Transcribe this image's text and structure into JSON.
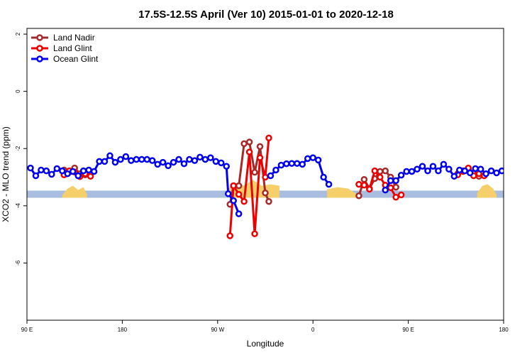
{
  "chart_data": {
    "type": "line",
    "title": "17.5S-12.5S April (Ver 10)   2015-01-01 to 2020-12-18",
    "xlabel": "Longitude",
    "ylabel": "XCO2 - MLO trend (ppm)",
    "xlim": [
      -90,
      180
    ],
    "ylim": [
      -8,
      2.2
    ],
    "x_ticks": [
      {
        "value": -90,
        "label": "90 E"
      },
      {
        "value": -36,
        "label": "180"
      },
      {
        "value": 18,
        "label": "90 W"
      },
      {
        "value": 72,
        "label": "0"
      },
      {
        "value": 126,
        "label": "90 E"
      },
      {
        "value": 180,
        "label": "180"
      }
    ],
    "y_ticks": [
      {
        "value": 2,
        "label": "2"
      },
      {
        "value": 0,
        "label": "0"
      },
      {
        "value": -2,
        "label": "-2"
      },
      {
        "value": -4,
        "label": "-4"
      },
      {
        "value": -6,
        "label": "-6"
      }
    ],
    "land_band": {
      "ymin": -3.72,
      "ymax": -3.47,
      "color": "#a9bde0"
    },
    "land_color": "#f5cf6a",
    "land_segments": [
      [
        {
          "x": -70,
          "y": -3.63
        },
        {
          "x": -67,
          "y": -3.4
        },
        {
          "x": -64,
          "y": -3.3
        },
        {
          "x": -61,
          "y": -3.45
        },
        {
          "x": -58,
          "y": -3.35
        },
        {
          "x": -56,
          "y": -3.6
        }
      ],
      [
        {
          "x": 24,
          "y": -3.4
        },
        {
          "x": 28,
          "y": -3.2
        },
        {
          "x": 33,
          "y": -3.3
        },
        {
          "x": 38,
          "y": -3.1
        },
        {
          "x": 43,
          "y": -3.3
        },
        {
          "x": 48,
          "y": -3.25
        },
        {
          "x": 53,
          "y": -3.3
        }
      ],
      [
        {
          "x": 80,
          "y": -3.42
        },
        {
          "x": 86,
          "y": -3.35
        },
        {
          "x": 92,
          "y": -3.4
        },
        {
          "x": 97,
          "y": -3.6
        }
      ],
      [
        {
          "x": 165,
          "y": -3.55
        },
        {
          "x": 168,
          "y": -3.3
        },
        {
          "x": 171,
          "y": -3.25
        },
        {
          "x": 174,
          "y": -3.4
        },
        {
          "x": 176,
          "y": -3.6
        }
      ]
    ],
    "legend": {
      "position": "top-left"
    },
    "series": [
      {
        "name": "Land Nadir",
        "color": "#a52a2a",
        "points": [
          {
            "x": -69,
            "y": -2.75
          },
          {
            "x": -66,
            "y": -2.82
          },
          {
            "x": -63,
            "y": -2.68
          },
          {
            "x": -60,
            "y": -2.88
          },
          {
            "x": -57,
            "y": -2.92
          },
          {
            "x": -54,
            "y": -2.82
          },
          {
            "x": 25,
            "y": -3.95
          },
          {
            "x": 27,
            "y": -3.3
          },
          {
            "x": 30,
            "y": -3.3
          },
          {
            "x": 33,
            "y": -1.83
          },
          {
            "x": 36,
            "y": -1.77
          },
          {
            "x": 39,
            "y": -2.83
          },
          {
            "x": 42,
            "y": -1.93
          },
          {
            "x": 45,
            "y": -3.55
          },
          {
            "x": 47,
            "y": -3.85
          },
          {
            "x": 98,
            "y": -3.65
          },
          {
            "x": 101,
            "y": -3.08
          },
          {
            "x": 104,
            "y": -3.4
          },
          {
            "x": 107,
            "y": -3.05
          },
          {
            "x": 110,
            "y": -2.8
          },
          {
            "x": 113,
            "y": -2.78
          },
          {
            "x": 116,
            "y": -3.0
          },
          {
            "x": 119,
            "y": -3.35
          },
          {
            "x": 154,
            "y": -2.88
          },
          {
            "x": 157,
            "y": -2.78
          },
          {
            "x": 160,
            "y": -2.72
          },
          {
            "x": 163,
            "y": -2.87
          },
          {
            "x": 166,
            "y": -2.97
          }
        ]
      },
      {
        "name": "Land Glint",
        "color": "#ee0000",
        "points": [
          {
            "x": -69,
            "y": -2.92
          },
          {
            "x": -66,
            "y": -2.78
          },
          {
            "x": -63,
            "y": -2.82
          },
          {
            "x": -60,
            "y": -2.98
          },
          {
            "x": -57,
            "y": -2.88
          },
          {
            "x": -54,
            "y": -2.97
          },
          {
            "x": 25,
            "y": -5.05
          },
          {
            "x": 27,
            "y": -3.3
          },
          {
            "x": 30,
            "y": -3.6
          },
          {
            "x": 33,
            "y": -3.85
          },
          {
            "x": 36,
            "y": -2.12
          },
          {
            "x": 39,
            "y": -4.98
          },
          {
            "x": 42,
            "y": -2.32
          },
          {
            "x": 45,
            "y": -3.0
          },
          {
            "x": 47,
            "y": -1.63
          },
          {
            "x": 98,
            "y": -3.25
          },
          {
            "x": 101,
            "y": -3.28
          },
          {
            "x": 104,
            "y": -3.42
          },
          {
            "x": 107,
            "y": -2.78
          },
          {
            "x": 110,
            "y": -3.0
          },
          {
            "x": 113,
            "y": -3.28
          },
          {
            "x": 116,
            "y": -3.37
          },
          {
            "x": 119,
            "y": -3.7
          },
          {
            "x": 122,
            "y": -3.62
          },
          {
            "x": 154,
            "y": -2.92
          },
          {
            "x": 157,
            "y": -2.8
          },
          {
            "x": 160,
            "y": -2.68
          },
          {
            "x": 163,
            "y": -2.95
          },
          {
            "x": 166,
            "y": -2.88
          },
          {
            "x": 169,
            "y": -2.95
          }
        ]
      },
      {
        "name": "Ocean Glint",
        "color": "#0000ee",
        "points": [
          {
            "x": -88,
            "y": -2.68
          },
          {
            "x": -85,
            "y": -2.95
          },
          {
            "x": -82,
            "y": -2.75
          },
          {
            "x": -79,
            "y": -2.78
          },
          {
            "x": -76,
            "y": -2.9
          },
          {
            "x": -73,
            "y": -2.7
          },
          {
            "x": -70,
            "y": -2.78
          },
          {
            "x": -67,
            "y": -2.88
          },
          {
            "x": -64,
            "y": -2.8
          },
          {
            "x": -61,
            "y": -2.95
          },
          {
            "x": -58,
            "y": -2.78
          },
          {
            "x": -55,
            "y": -2.75
          },
          {
            "x": -52,
            "y": -2.8
          },
          {
            "x": -49,
            "y": -2.45
          },
          {
            "x": -46,
            "y": -2.45
          },
          {
            "x": -43,
            "y": -2.25
          },
          {
            "x": -40,
            "y": -2.48
          },
          {
            "x": -37,
            "y": -2.38
          },
          {
            "x": -34,
            "y": -2.28
          },
          {
            "x": -31,
            "y": -2.42
          },
          {
            "x": -28,
            "y": -2.38
          },
          {
            "x": -25,
            "y": -2.38
          },
          {
            "x": -22,
            "y": -2.38
          },
          {
            "x": -19,
            "y": -2.42
          },
          {
            "x": -16,
            "y": -2.55
          },
          {
            "x": -13,
            "y": -2.48
          },
          {
            "x": -10,
            "y": -2.6
          },
          {
            "x": -7,
            "y": -2.48
          },
          {
            "x": -4,
            "y": -2.38
          },
          {
            "x": -1,
            "y": -2.53
          },
          {
            "x": 2,
            "y": -2.38
          },
          {
            "x": 5,
            "y": -2.42
          },
          {
            "x": 8,
            "y": -2.3
          },
          {
            "x": 11,
            "y": -2.38
          },
          {
            "x": 14,
            "y": -2.32
          },
          {
            "x": 17,
            "y": -2.45
          },
          {
            "x": 20,
            "y": -2.5
          },
          {
            "x": 23,
            "y": -2.62
          },
          {
            "x": 24,
            "y": -3.58
          },
          {
            "x": 27,
            "y": -3.82
          },
          {
            "x": 30,
            "y": -4.28
          },
          {
            "x": 48,
            "y": -2.95
          },
          {
            "x": 51,
            "y": -2.75
          },
          {
            "x": 54,
            "y": -2.58
          },
          {
            "x": 57,
            "y": -2.53
          },
          {
            "x": 60,
            "y": -2.52
          },
          {
            "x": 63,
            "y": -2.52
          },
          {
            "x": 66,
            "y": -2.55
          },
          {
            "x": 69,
            "y": -2.35
          },
          {
            "x": 72,
            "y": -2.32
          },
          {
            "x": 75,
            "y": -2.4
          },
          {
            "x": 78,
            "y": -3.0
          },
          {
            "x": 81,
            "y": -3.25
          },
          {
            "x": 113,
            "y": -3.45
          },
          {
            "x": 116,
            "y": -3.12
          },
          {
            "x": 119,
            "y": -3.12
          },
          {
            "x": 122,
            "y": -2.93
          },
          {
            "x": 125,
            "y": -2.8
          },
          {
            "x": 128,
            "y": -2.8
          },
          {
            "x": 131,
            "y": -2.72
          },
          {
            "x": 134,
            "y": -2.62
          },
          {
            "x": 137,
            "y": -2.78
          },
          {
            "x": 140,
            "y": -2.62
          },
          {
            "x": 143,
            "y": -2.78
          },
          {
            "x": 146,
            "y": -2.55
          },
          {
            "x": 149,
            "y": -2.72
          },
          {
            "x": 152,
            "y": -2.97
          },
          {
            "x": 155,
            "y": -2.75
          },
          {
            "x": 158,
            "y": -2.78
          },
          {
            "x": 161,
            "y": -2.85
          },
          {
            "x": 164,
            "y": -2.7
          },
          {
            "x": 167,
            "y": -2.72
          },
          {
            "x": 170,
            "y": -2.88
          },
          {
            "x": 173,
            "y": -2.78
          },
          {
            "x": 176,
            "y": -2.85
          },
          {
            "x": 179,
            "y": -2.78
          },
          {
            "x": 182,
            "y": -2.85
          },
          {
            "x": 185,
            "y": -2.95
          },
          {
            "x": 188,
            "y": -2.78
          },
          {
            "x": 191,
            "y": -2.85
          },
          {
            "x": 194,
            "y": -2.48
          },
          {
            "x": 197,
            "y": -2.45
          },
          {
            "x": 200,
            "y": -2.25
          },
          {
            "x": 203,
            "y": -2.48
          },
          {
            "x": 206,
            "y": -2.38
          }
        ]
      }
    ]
  }
}
